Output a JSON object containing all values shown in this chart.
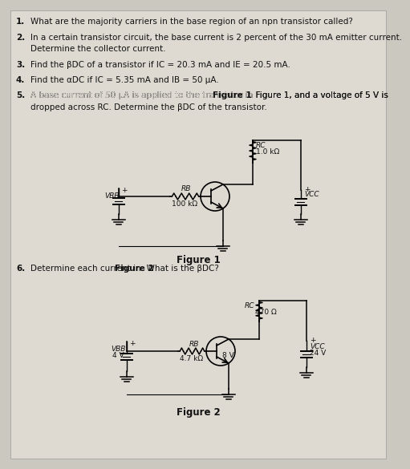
{
  "bg_color": "#cbc8c0",
  "page_color": "#dedad2",
  "text_color": "#111111",
  "q1": "What are the majority carriers in the base region of an npn transistor called?",
  "q2a": "In a certain transistor circuit, the base current is 2 percent of the 30 mA emitter current.",
  "q2b": "Determine the collector current.",
  "q3": "Find the βDC of a transistor if IC = 20.3 mA and IE = 20.5 mA.",
  "q4": "Find the αDC if IC = 5.35 mA and IB = 50 μA.",
  "q5a": "A base current of 50 μA is applied to the transistor in Figure 1, and a voltage of 5 V is",
  "q5b": "dropped across RC. Determine the βDC of the transistor.",
  "fig1_label": "Figure 1",
  "fig2_label": "Figure 2",
  "q6a": "Determine each current in ",
  "q6b": "Figure 2",
  "q6c": ". What is the βDC?",
  "f1_rb": "RB",
  "f1_rb_val": "100 kΩ",
  "f1_rc": "RC",
  "f1_rc_val": "1.0 kΩ",
  "f1_vbb": "VBB",
  "f1_vcc": "VCC",
  "f2_rb": "RB",
  "f2_rb_val": "4.7 kΩ",
  "f2_rc": "RC",
  "f2_rc_val": "470 Ω",
  "f2_vbb": "VBB",
  "f2_vbb_val": "4 V",
  "f2_vce": "8 V",
  "f2_vcc": "VCC",
  "f2_vcc_val": "24 V",
  "fig1_bold": "Figure 1"
}
